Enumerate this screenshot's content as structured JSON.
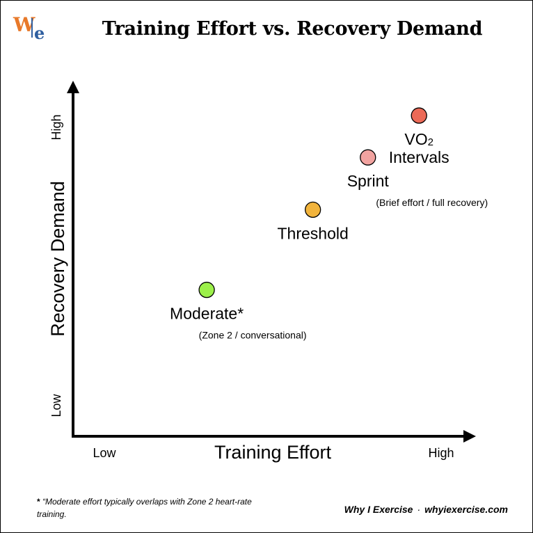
{
  "header": {
    "title": "Training Effort vs. Recovery Demand",
    "logo": {
      "w": "W",
      "i": "i",
      "e": "e"
    }
  },
  "chart_data": {
    "type": "scatter",
    "title": "Training Effort vs. Recovery Demand",
    "xlabel": "Training Effort",
    "ylabel": "Recovery Demand",
    "xlim": [
      0,
      100
    ],
    "ylim": [
      0,
      100
    ],
    "x_ticks": {
      "low": "Low",
      "high": "High"
    },
    "y_ticks": {
      "low": "Low",
      "high": "High"
    },
    "grid": false,
    "points": [
      {
        "label": "Moderate*",
        "sublabel": "(Zone 2 / conversational)",
        "x": 34,
        "y": 42,
        "color": "#9cf04a"
      },
      {
        "label": "Threshold",
        "sublabel": "",
        "x": 61,
        "y": 65,
        "color": "#f2b43c"
      },
      {
        "label": "Sprint",
        "sublabel": "(Brief effort / full recovery)",
        "x": 75,
        "y": 80,
        "color": "#f2a3a0"
      },
      {
        "label": "VO",
        "label_sub": "2",
        "label_line2": "Intervals",
        "sublabel": "",
        "x": 88,
        "y": 92,
        "color": "#ec6a57"
      }
    ]
  },
  "footer": {
    "note_mark": "*",
    "note_text": "“Moderate effort typically overlaps with Zone 2 heart-rate training.",
    "credit_site": "Why I Exercise",
    "credit_sep": "·",
    "credit_url": "whyiexercise.com"
  }
}
